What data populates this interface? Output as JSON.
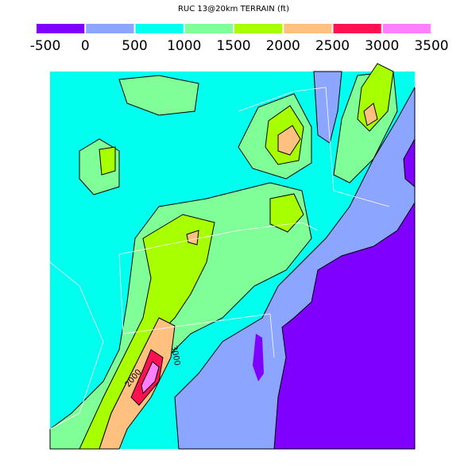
{
  "map": {
    "title": "RUC 13@20km TERRAIN (ft)",
    "legend": {
      "ticks": [
        -500,
        0,
        500,
        1000,
        1500,
        2000,
        2500,
        3000,
        3500
      ],
      "colors": [
        "#8000ff",
        "#8ca5ff",
        "#00ffee",
        "#80ff99",
        "#a8ff00",
        "#ffc080",
        "#ff1050",
        "#ff80ff"
      ]
    },
    "contour_labels": [
      "2000",
      "3000"
    ]
  }
}
